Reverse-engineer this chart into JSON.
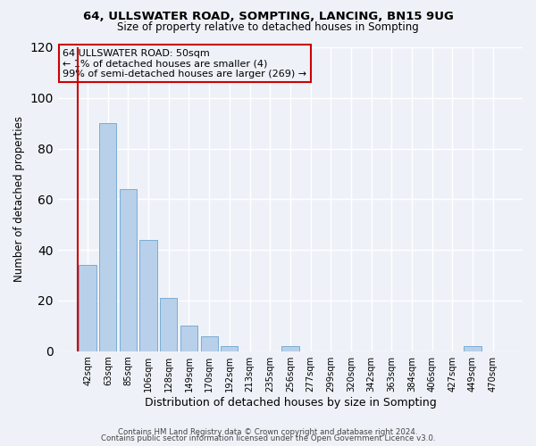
{
  "title1": "64, ULLSWATER ROAD, SOMPTING, LANCING, BN15 9UG",
  "title2": "Size of property relative to detached houses in Sompting",
  "xlabel": "Distribution of detached houses by size in Sompting",
  "ylabel": "Number of detached properties",
  "bar_labels": [
    "42sqm",
    "63sqm",
    "85sqm",
    "106sqm",
    "128sqm",
    "149sqm",
    "170sqm",
    "192sqm",
    "213sqm",
    "235sqm",
    "256sqm",
    "277sqm",
    "299sqm",
    "320sqm",
    "342sqm",
    "363sqm",
    "384sqm",
    "406sqm",
    "427sqm",
    "449sqm",
    "470sqm"
  ],
  "bar_values": [
    34,
    90,
    64,
    44,
    21,
    10,
    6,
    2,
    0,
    0,
    2,
    0,
    0,
    0,
    0,
    0,
    0,
    0,
    0,
    2,
    0
  ],
  "bar_color": "#b8d0ea",
  "bar_edge_color": "#7aadd4",
  "vline_color": "#cc0000",
  "box_text_line1": "64 ULLSWATER ROAD: 50sqm",
  "box_text_line2": "← 1% of detached houses are smaller (4)",
  "box_text_line3": "99% of semi-detached houses are larger (269) →",
  "box_color": "#cc0000",
  "ylim": [
    0,
    120
  ],
  "yticks": [
    0,
    20,
    40,
    60,
    80,
    100,
    120
  ],
  "footnote1": "Contains HM Land Registry data © Crown copyright and database right 2024.",
  "footnote2": "Contains public sector information licensed under the Open Government Licence v3.0.",
  "background_color": "#eef2f8",
  "grid_color": "#ffffff"
}
